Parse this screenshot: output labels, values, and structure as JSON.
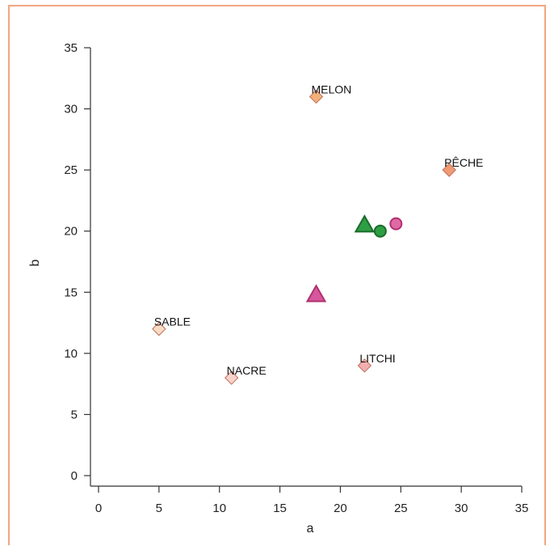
{
  "colors": {
    "frame": "#f4a582",
    "axis": "#333333",
    "green": "#2e9e44",
    "green_stroke": "#1b6b2a",
    "pink": "#d6579b",
    "pink_stroke": "#b0306f"
  },
  "chart_data": {
    "type": "scatter",
    "title": "",
    "xlabel": "a",
    "ylabel": "b",
    "xlim": [
      0,
      35
    ],
    "ylim": [
      0,
      35
    ],
    "xticks": [
      0,
      5,
      10,
      15,
      20,
      25,
      30,
      35
    ],
    "yticks": [
      0,
      5,
      10,
      15,
      20,
      25,
      30,
      35
    ],
    "grid": false,
    "labeled_points": [
      {
        "label": "MELON",
        "x": 18,
        "y": 31,
        "marker": "diamond",
        "color": "#f2b07a"
      },
      {
        "label": "PÊCHE",
        "x": 29,
        "y": 25,
        "marker": "diamond",
        "color": "#ef9a74"
      },
      {
        "label": "SABLE",
        "x": 5,
        "y": 12,
        "marker": "diamond",
        "color": "#f9dcc4"
      },
      {
        "label": "NACRE",
        "x": 11,
        "y": 8,
        "marker": "diamond",
        "color": "#f8d2cc"
      },
      {
        "label": "LITCHI",
        "x": 22,
        "y": 9,
        "marker": "diamond",
        "color": "#f3aeb0"
      }
    ],
    "markers": [
      {
        "x": 22,
        "y": 20.5,
        "marker": "triangle",
        "color": "#2e9e44"
      },
      {
        "x": 23.3,
        "y": 20,
        "marker": "circle",
        "color": "#2e9e44"
      },
      {
        "x": 24.6,
        "y": 20.6,
        "marker": "circle",
        "color": "#e06aa6"
      },
      {
        "x": 18,
        "y": 14.8,
        "marker": "triangle",
        "color": "#d6579b"
      }
    ]
  }
}
